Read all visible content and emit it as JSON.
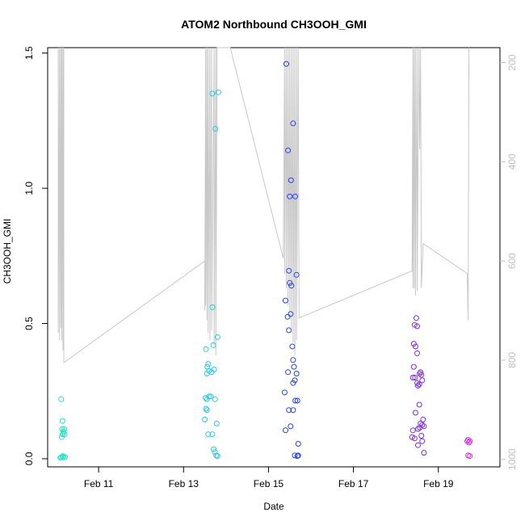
{
  "chart_data": {
    "type": "scatter",
    "title": "ATOM2 Northbound CH3OOH_GMI",
    "xlabel": "Date",
    "ylabel": "CH3OOH_GMI",
    "xlim": [
      9.8,
      20.45
    ],
    "ylim": [
      -0.03,
      1.52
    ],
    "x_ticks": [
      {
        "x": 11,
        "label": "Feb 11"
      },
      {
        "x": 13,
        "label": "Feb 13"
      },
      {
        "x": 15,
        "label": "Feb 15"
      },
      {
        "x": 17,
        "label": "Feb 17"
      },
      {
        "x": 19,
        "label": "Feb 19"
      }
    ],
    "y_ticks": [
      {
        "y": 0.0,
        "label": "0.0"
      },
      {
        "y": 0.5,
        "label": "0.5"
      },
      {
        "y": 1.0,
        "label": "1.0"
      },
      {
        "y": 1.5,
        "label": "1.5"
      }
    ],
    "y2_lim": [
      1015,
      170
    ],
    "y2_ticks": [
      {
        "y": 200,
        "label": "200"
      },
      {
        "y": 400,
        "label": "400"
      },
      {
        "y": 600,
        "label": "600"
      },
      {
        "y": 800,
        "label": "800"
      },
      {
        "y": 1000,
        "label": "1000"
      }
    ],
    "colors": {
      "pressure_line": "#c8c8c8",
      "axis": "#000000",
      "right_axis": "#c0c0c0"
    },
    "series": [
      {
        "color": "#22e5c8",
        "points": [
          [
            10.12,
            0.22
          ],
          [
            10.15,
            0.14
          ],
          [
            10.14,
            0.11
          ],
          [
            10.18,
            0.1
          ],
          [
            10.15,
            0.09
          ],
          [
            10.19,
            0.11
          ],
          [
            10.13,
            0.08
          ],
          [
            10.2,
            0.09
          ],
          [
            10.17,
            0.1
          ],
          [
            10.12,
            0.005
          ],
          [
            10.15,
            0.008
          ],
          [
            10.18,
            0.005
          ],
          [
            10.21,
            0.006
          ],
          [
            10.1,
            0.004
          ],
          [
            10.16,
            0.01
          ]
        ]
      },
      {
        "color": "#26c9ee",
        "points": [
          [
            13.68,
            1.35
          ],
          [
            13.82,
            1.355
          ],
          [
            13.75,
            1.22
          ],
          [
            13.68,
            0.56
          ],
          [
            13.53,
            0.405
          ],
          [
            13.7,
            0.42
          ],
          [
            13.8,
            0.45
          ],
          [
            13.58,
            0.35
          ],
          [
            13.56,
            0.34
          ],
          [
            13.6,
            0.325
          ],
          [
            13.55,
            0.315
          ],
          [
            13.66,
            0.32
          ],
          [
            13.72,
            0.33
          ],
          [
            13.52,
            0.225
          ],
          [
            13.6,
            0.23
          ],
          [
            13.64,
            0.23
          ],
          [
            13.55,
            0.22
          ],
          [
            13.74,
            0.22
          ],
          [
            13.53,
            0.185
          ],
          [
            13.55,
            0.18
          ],
          [
            13.5,
            0.145
          ],
          [
            13.78,
            0.13
          ],
          [
            13.58,
            0.09
          ],
          [
            13.68,
            0.09
          ],
          [
            13.71,
            0.035
          ],
          [
            13.74,
            0.025
          ],
          [
            13.77,
            0.012
          ],
          [
            13.8,
            0.01
          ]
        ]
      },
      {
        "color": "#2541f0",
        "points": [
          [
            15.42,
            1.46
          ],
          [
            15.58,
            1.24
          ],
          [
            15.46,
            1.14
          ],
          [
            15.53,
            1.03
          ],
          [
            15.5,
            0.97
          ],
          [
            15.63,
            0.97
          ],
          [
            15.48,
            0.695
          ],
          [
            15.66,
            0.68
          ],
          [
            15.5,
            0.65
          ],
          [
            15.54,
            0.64
          ],
          [
            15.4,
            0.585
          ],
          [
            15.52,
            0.535
          ],
          [
            15.45,
            0.525
          ],
          [
            15.48,
            0.475
          ],
          [
            15.56,
            0.415
          ],
          [
            15.58,
            0.365
          ],
          [
            15.6,
            0.34
          ],
          [
            15.46,
            0.32
          ],
          [
            15.66,
            0.315
          ],
          [
            15.62,
            0.29
          ],
          [
            15.58,
            0.28
          ],
          [
            15.38,
            0.245
          ],
          [
            15.63,
            0.215
          ],
          [
            15.68,
            0.215
          ],
          [
            15.48,
            0.18
          ],
          [
            15.58,
            0.18
          ],
          [
            15.52,
            0.12
          ],
          [
            15.4,
            0.105
          ],
          [
            15.7,
            0.055
          ],
          [
            15.62,
            0.012
          ],
          [
            15.68,
            0.01
          ],
          [
            15.7,
            0.012
          ]
        ]
      },
      {
        "color": "#7d2cf0",
        "points": [
          [
            18.48,
            0.52
          ],
          [
            18.44,
            0.495
          ],
          [
            18.5,
            0.49
          ],
          [
            18.42,
            0.425
          ],
          [
            18.46,
            0.415
          ],
          [
            18.5,
            0.39
          ],
          [
            18.42,
            0.34
          ],
          [
            18.58,
            0.32
          ],
          [
            18.56,
            0.315
          ],
          [
            18.6,
            0.31
          ],
          [
            18.4,
            0.3
          ],
          [
            18.45,
            0.3
          ],
          [
            18.62,
            0.29
          ],
          [
            18.5,
            0.28
          ],
          [
            18.55,
            0.275
          ],
          [
            18.52,
            0.27
          ],
          [
            18.55,
            0.2
          ],
          [
            18.46,
            0.17
          ],
          [
            18.64,
            0.145
          ],
          [
            18.58,
            0.13
          ],
          [
            18.62,
            0.125
          ],
          [
            18.66,
            0.12
          ],
          [
            18.56,
            0.115
          ],
          [
            18.52,
            0.11
          ],
          [
            18.4,
            0.105
          ],
          [
            18.38,
            0.08
          ],
          [
            18.44,
            0.075
          ],
          [
            18.6,
            0.085
          ],
          [
            18.52,
            0.05
          ],
          [
            18.62,
            0.065
          ],
          [
            18.66,
            0.022
          ]
        ]
      },
      {
        "color": "#e02cf0",
        "points": [
          [
            19.7,
            0.07
          ],
          [
            19.74,
            0.065
          ],
          [
            19.72,
            0.06
          ],
          [
            19.68,
            0.065
          ],
          [
            19.7,
            0.012
          ],
          [
            19.74,
            0.01
          ]
        ]
      }
    ],
    "pressure_line": [
      [
        10.05,
        170
      ],
      [
        10.05,
        745
      ],
      [
        10.08,
        170
      ],
      [
        10.08,
        760
      ],
      [
        10.11,
        170
      ],
      [
        10.11,
        735
      ],
      [
        10.13,
        170
      ],
      [
        10.13,
        760
      ],
      [
        10.16,
        170
      ],
      [
        10.16,
        780
      ],
      [
        10.18,
        170
      ],
      [
        10.18,
        805
      ],
      [
        13.5,
        600
      ],
      [
        13.5,
        700
      ],
      [
        13.52,
        170
      ],
      [
        13.52,
        690
      ],
      [
        13.55,
        170
      ],
      [
        13.55,
        720
      ],
      [
        13.58,
        170
      ],
      [
        13.58,
        745
      ],
      [
        13.62,
        170
      ],
      [
        13.62,
        760
      ],
      [
        13.66,
        170
      ],
      [
        13.66,
        740
      ],
      [
        13.72,
        170
      ],
      [
        13.72,
        770
      ],
      [
        13.76,
        170
      ],
      [
        13.76,
        790
      ],
      [
        13.79,
        170
      ],
      [
        14.1,
        170
      ],
      [
        15.35,
        595
      ],
      [
        15.38,
        170
      ],
      [
        15.38,
        625
      ],
      [
        15.42,
        170
      ],
      [
        15.42,
        655
      ],
      [
        15.46,
        170
      ],
      [
        15.46,
        690
      ],
      [
        15.5,
        170
      ],
      [
        15.5,
        710
      ],
      [
        15.54,
        170
      ],
      [
        15.54,
        735
      ],
      [
        15.58,
        170
      ],
      [
        15.58,
        765
      ],
      [
        15.62,
        170
      ],
      [
        15.62,
        790
      ],
      [
        15.66,
        170
      ],
      [
        15.66,
        760
      ],
      [
        15.7,
        170
      ],
      [
        15.72,
        715
      ],
      [
        18.38,
        620
      ],
      [
        18.4,
        170
      ],
      [
        18.4,
        655
      ],
      [
        18.43,
        170
      ],
      [
        18.43,
        655
      ],
      [
        18.46,
        170
      ],
      [
        18.46,
        670
      ],
      [
        18.5,
        170
      ],
      [
        18.5,
        660
      ],
      [
        18.54,
        170
      ],
      [
        18.56,
        375
      ],
      [
        18.58,
        170
      ],
      [
        18.6,
        655
      ],
      [
        18.64,
        565
      ],
      [
        19.68,
        625
      ],
      [
        19.7,
        720
      ],
      [
        19.72,
        170
      ]
    ]
  }
}
